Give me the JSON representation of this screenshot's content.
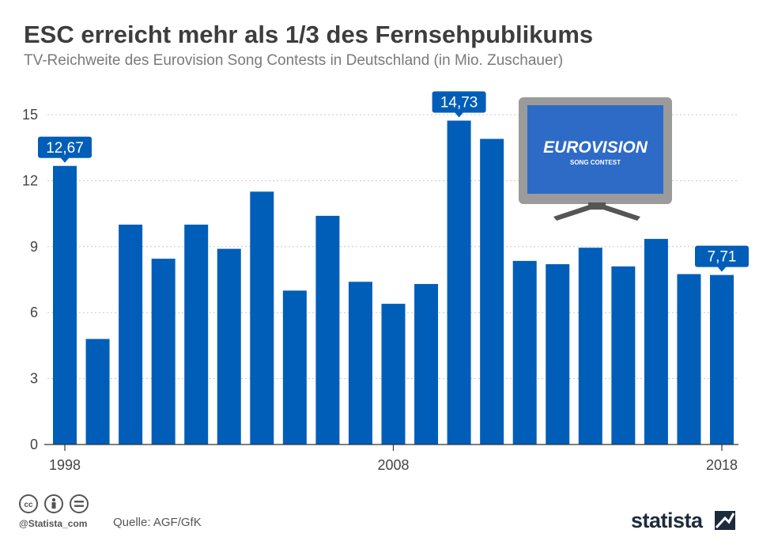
{
  "header": {
    "title": "ESC erreicht mehr als 1/3 des Fernsehpublikums",
    "subtitle": "TV-Reichweite des Eurovision Song Contests in Deutschland (in Mio. Zuschauer)"
  },
  "chart_data": {
    "type": "bar",
    "title": "ESC erreicht mehr als 1/3 des Fernsehpublikums",
    "subtitle": "TV-Reichweite des Eurovision Song Contests in Deutschland (in Mio. Zuschauer)",
    "xlabel": "",
    "ylabel": "",
    "categories": [
      "1998",
      "1999",
      "2000",
      "2001",
      "2002",
      "2003",
      "2004",
      "2005",
      "2006",
      "2007",
      "2008",
      "2009",
      "2010",
      "2011",
      "2012",
      "2013",
      "2014",
      "2015",
      "2016",
      "2017",
      "2018"
    ],
    "x_tick_labels": [
      "1998",
      "2008",
      "2018"
    ],
    "values": [
      12.67,
      4.8,
      10.0,
      8.45,
      10.0,
      8.9,
      11.5,
      7.0,
      10.4,
      7.4,
      6.4,
      7.3,
      14.73,
      13.9,
      8.35,
      8.2,
      8.95,
      8.1,
      9.35,
      7.75,
      7.71
    ],
    "highlight_labels": [
      {
        "index": 0,
        "label": "12,67"
      },
      {
        "index": 12,
        "label": "14,73"
      },
      {
        "index": 20,
        "label": "7,71"
      }
    ],
    "ylim": [
      0,
      15
    ],
    "y_ticks": [
      0,
      3,
      6,
      9,
      12,
      15
    ],
    "grid": true,
    "bar_color": "#005eb8"
  },
  "tv_image": {
    "logo_text": "EUROVISION",
    "logo_subtext": "SONG CONTEST"
  },
  "footer": {
    "handle": "@Statista_com",
    "source": "Quelle: AGF/GfK",
    "brand": "statista"
  },
  "colors": {
    "bar": "#005eb8",
    "title": "#3d3d3d",
    "subtitle": "#7a7a7a",
    "tv_frame": "#9b9b9b",
    "tv_screen": "#2e6bc6"
  }
}
